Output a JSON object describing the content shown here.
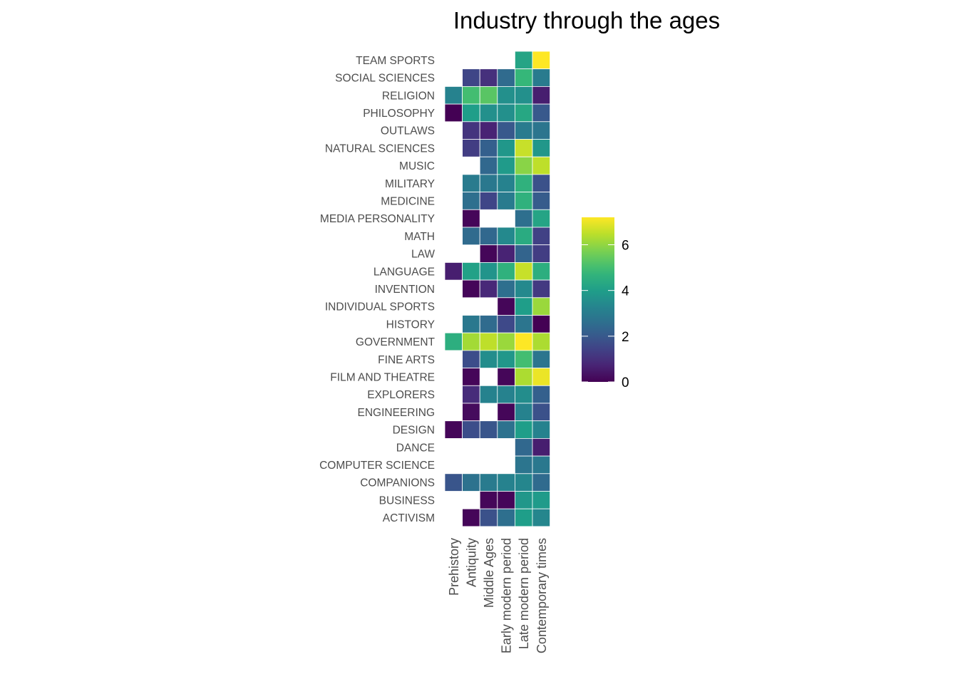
{
  "chart_data": {
    "type": "heatmap",
    "title": "Industry through the ages",
    "xlabel": "",
    "ylabel": "",
    "x_categories": [
      "Prehistory",
      "Antiquity",
      "Middle Ages",
      "Early modern period",
      "Late modern period",
      "Contemporary times"
    ],
    "y_categories": [
      "TEAM SPORTS",
      "SOCIAL SCIENCES",
      "RELIGION",
      "PHILOSOPHY",
      "OUTLAWS",
      "NATURAL SCIENCES",
      "MUSIC",
      "MILITARY",
      "MEDICINE",
      "MEDIA PERSONALITY",
      "MATH",
      "LAW",
      "LANGUAGE",
      "INVENTION",
      "INDIVIDUAL SPORTS",
      "HISTORY",
      "GOVERNMENT",
      "FINE ARTS",
      "FILM AND THEATRE",
      "EXPLORERS",
      "ENGINEERING",
      "DESIGN",
      "DANCE",
      "COMPUTER SCIENCE",
      "COMPANIONS",
      "BUSINESS",
      "ACTIVISM"
    ],
    "values": [
      [
        null,
        null,
        null,
        null,
        4.2,
        7.2
      ],
      [
        null,
        1.5,
        1.0,
        2.5,
        4.8,
        3.0
      ],
      [
        3.2,
        5.0,
        5.3,
        3.6,
        3.6,
        0.6
      ],
      [
        0.0,
        4.0,
        3.6,
        3.6,
        4.3,
        2.0
      ],
      [
        null,
        1.1,
        0.7,
        2.0,
        3.0,
        2.8
      ],
      [
        null,
        1.3,
        2.2,
        3.8,
        6.6,
        3.8
      ],
      [
        null,
        null,
        2.4,
        3.9,
        5.9,
        6.5
      ],
      [
        null,
        3.0,
        2.9,
        3.2,
        4.6,
        1.8
      ],
      [
        null,
        2.6,
        1.5,
        3.0,
        4.6,
        2.1
      ],
      [
        null,
        0.1,
        null,
        null,
        2.6,
        4.2
      ],
      [
        null,
        2.5,
        2.4,
        3.4,
        4.4,
        1.4
      ],
      [
        null,
        null,
        0.1,
        0.7,
        2.3,
        1.3
      ],
      [
        0.6,
        4.1,
        3.7,
        4.6,
        6.6,
        4.5
      ],
      [
        null,
        0.1,
        0.8,
        2.6,
        3.4,
        1.2
      ],
      [
        null,
        null,
        null,
        0.1,
        4.0,
        6.1
      ],
      [
        null,
        2.9,
        2.5,
        1.6,
        2.8,
        0.0
      ],
      [
        4.5,
        6.2,
        6.5,
        6.1,
        7.2,
        6.3
      ],
      [
        null,
        1.7,
        3.5,
        3.8,
        5.0,
        2.8
      ],
      [
        null,
        0.1,
        null,
        0.1,
        6.3,
        7.0
      ],
      [
        null,
        0.9,
        3.2,
        3.2,
        3.5,
        2.2
      ],
      [
        null,
        0.2,
        null,
        0.1,
        3.2,
        1.8
      ],
      [
        0.1,
        1.7,
        1.9,
        2.7,
        4.0,
        3.2
      ],
      [
        null,
        null,
        null,
        null,
        2.4,
        0.6
      ],
      [
        null,
        null,
        null,
        null,
        2.8,
        2.9
      ],
      [
        1.9,
        2.7,
        3.0,
        3.2,
        3.3,
        2.5
      ],
      [
        null,
        null,
        0.1,
        0.1,
        3.8,
        3.9
      ],
      [
        null,
        0.1,
        1.8,
        2.6,
        4.0,
        3.3
      ]
    ],
    "colorbar": {
      "min": 0,
      "max": 7.2,
      "ticks": [
        0,
        2,
        4,
        6
      ],
      "palette": "viridis"
    },
    "legend_position": "right",
    "grid": false
  }
}
